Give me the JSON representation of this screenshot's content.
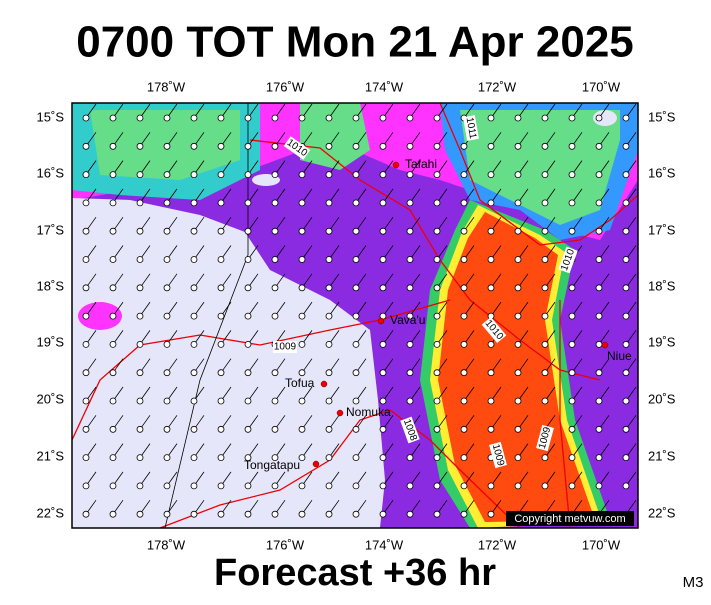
{
  "header": {
    "title": "0700 TOT Mon 21 Apr 2025"
  },
  "map": {
    "lon_labels": [
      "178˚W",
      "176˚W",
      "174˚W",
      "172˚W",
      "170˚W"
    ],
    "lat_labels": [
      "15˚S",
      "16˚S",
      "17˚S",
      "18˚S",
      "19˚S",
      "20˚S",
      "21˚S",
      "22˚S"
    ],
    "places": [
      "Tafahi",
      "Vava'u",
      "Niue",
      "Tofua",
      "Nomuka",
      "Tongatapu"
    ],
    "isobar_labels": [
      "1010",
      "1011",
      "1010",
      "1010",
      "1009",
      "1008",
      "1009",
      "1009"
    ],
    "copyright": "Copyright metvuw.com"
  },
  "footer": {
    "forecast": "Forecast +36 hr",
    "model": "M3"
  }
}
